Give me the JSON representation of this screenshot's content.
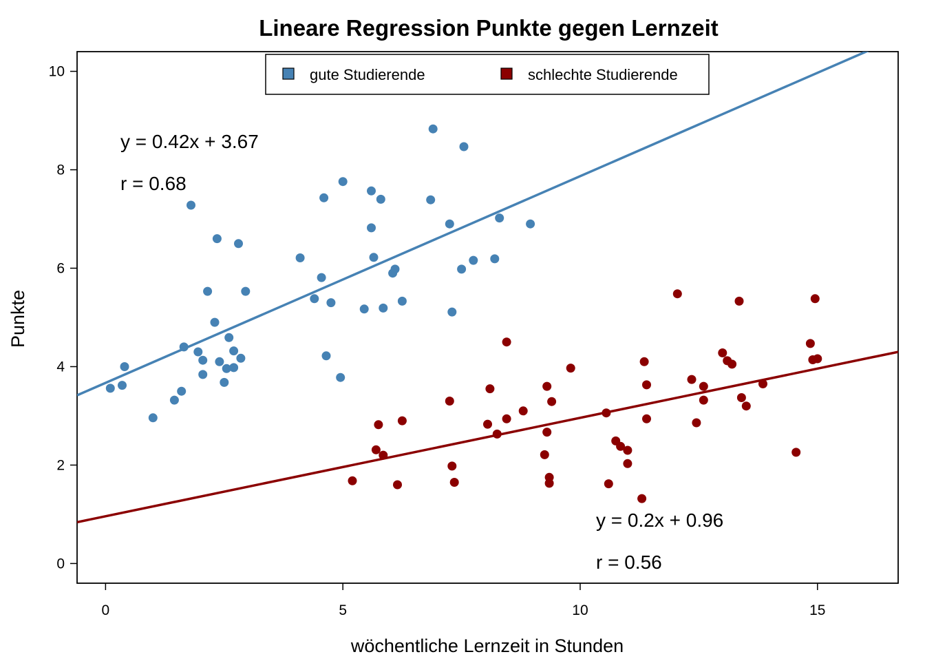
{
  "chart_data": {
    "type": "scatter",
    "title": "Lineare Regression Punkte gegen Lernzeit",
    "xlabel": "wöchentliche Lernzeit in Stunden",
    "ylabel": "Punkte",
    "xlim": [
      -0.6,
      16.7
    ],
    "ylim": [
      -0.4,
      10.4
    ],
    "x_ticks": [
      0,
      5,
      10,
      15
    ],
    "y_ticks": [
      0,
      2,
      4,
      6,
      8,
      10
    ],
    "grid": false,
    "legend_position": "top-center",
    "series": [
      {
        "name": "gute Studierende",
        "color": "#4682B4",
        "points": [
          [
            0.1,
            3.56
          ],
          [
            0.35,
            3.62
          ],
          [
            0.4,
            4.0
          ],
          [
            1.0,
            2.96
          ],
          [
            1.45,
            3.32
          ],
          [
            1.6,
            3.5
          ],
          [
            1.65,
            4.4
          ],
          [
            1.8,
            7.28
          ],
          [
            1.95,
            4.3
          ],
          [
            2.05,
            4.13
          ],
          [
            2.05,
            3.84
          ],
          [
            2.15,
            5.53
          ],
          [
            2.3,
            4.9
          ],
          [
            2.35,
            6.6
          ],
          [
            2.4,
            4.1
          ],
          [
            2.5,
            3.68
          ],
          [
            2.55,
            3.96
          ],
          [
            2.6,
            4.59
          ],
          [
            2.7,
            3.98
          ],
          [
            2.7,
            4.32
          ],
          [
            2.8,
            6.5
          ],
          [
            2.85,
            4.17
          ],
          [
            2.95,
            5.53
          ],
          [
            4.1,
            6.21
          ],
          [
            4.4,
            5.38
          ],
          [
            4.55,
            5.81
          ],
          [
            4.6,
            7.43
          ],
          [
            4.65,
            4.22
          ],
          [
            4.75,
            5.3
          ],
          [
            4.95,
            3.78
          ],
          [
            5.0,
            7.76
          ],
          [
            5.45,
            5.17
          ],
          [
            5.6,
            7.57
          ],
          [
            5.6,
            6.82
          ],
          [
            5.65,
            6.22
          ],
          [
            5.8,
            7.4
          ],
          [
            5.85,
            5.19
          ],
          [
            6.05,
            5.9
          ],
          [
            6.1,
            5.98
          ],
          [
            6.25,
            5.33
          ],
          [
            6.85,
            7.39
          ],
          [
            6.9,
            8.83
          ],
          [
            7.25,
            6.9
          ],
          [
            7.3,
            5.11
          ],
          [
            7.5,
            5.98
          ],
          [
            7.55,
            8.47
          ],
          [
            7.75,
            6.16
          ],
          [
            8.2,
            6.19
          ],
          [
            8.3,
            7.02
          ],
          [
            8.95,
            6.9
          ]
        ],
        "regression_label": "y = 0.42x + 3.67",
        "r_label": "r = 0.68",
        "regression": {
          "slope": 0.42,
          "intercept": 3.67
        }
      },
      {
        "name": "schlechte Studierende",
        "color": "#8B0000",
        "points": [
          [
            5.2,
            1.68
          ],
          [
            5.7,
            2.31
          ],
          [
            5.75,
            2.82
          ],
          [
            5.85,
            2.2
          ],
          [
            6.15,
            1.6
          ],
          [
            6.25,
            2.9
          ],
          [
            7.25,
            3.3
          ],
          [
            7.3,
            1.98
          ],
          [
            7.35,
            1.65
          ],
          [
            8.05,
            2.83
          ],
          [
            8.1,
            3.55
          ],
          [
            8.25,
            2.63
          ],
          [
            8.45,
            2.94
          ],
          [
            8.45,
            4.5
          ],
          [
            8.8,
            3.1
          ],
          [
            9.25,
            2.21
          ],
          [
            9.3,
            3.6
          ],
          [
            9.3,
            2.67
          ],
          [
            9.35,
            1.75
          ],
          [
            9.35,
            1.63
          ],
          [
            9.4,
            3.29
          ],
          [
            9.8,
            3.97
          ],
          [
            10.55,
            3.06
          ],
          [
            10.6,
            1.62
          ],
          [
            10.75,
            2.49
          ],
          [
            10.85,
            2.38
          ],
          [
            11.0,
            2.3
          ],
          [
            11.0,
            2.03
          ],
          [
            11.3,
            1.32
          ],
          [
            11.35,
            4.1
          ],
          [
            11.4,
            3.63
          ],
          [
            11.4,
            2.94
          ],
          [
            12.05,
            5.48
          ],
          [
            12.35,
            3.74
          ],
          [
            12.45,
            2.86
          ],
          [
            12.6,
            3.32
          ],
          [
            12.6,
            3.6
          ],
          [
            13.0,
            4.28
          ],
          [
            13.1,
            4.12
          ],
          [
            13.2,
            4.05
          ],
          [
            13.35,
            5.33
          ],
          [
            13.4,
            3.37
          ],
          [
            13.5,
            3.2
          ],
          [
            13.85,
            3.65
          ],
          [
            14.55,
            2.26
          ],
          [
            14.85,
            4.47
          ],
          [
            14.9,
            4.14
          ],
          [
            14.95,
            5.38
          ],
          [
            15.0,
            4.16
          ]
        ],
        "regression_label": "y = 0.2x + 0.96",
        "r_label": "r = 0.56",
        "regression": {
          "slope": 0.2,
          "intercept": 0.96
        }
      }
    ]
  }
}
